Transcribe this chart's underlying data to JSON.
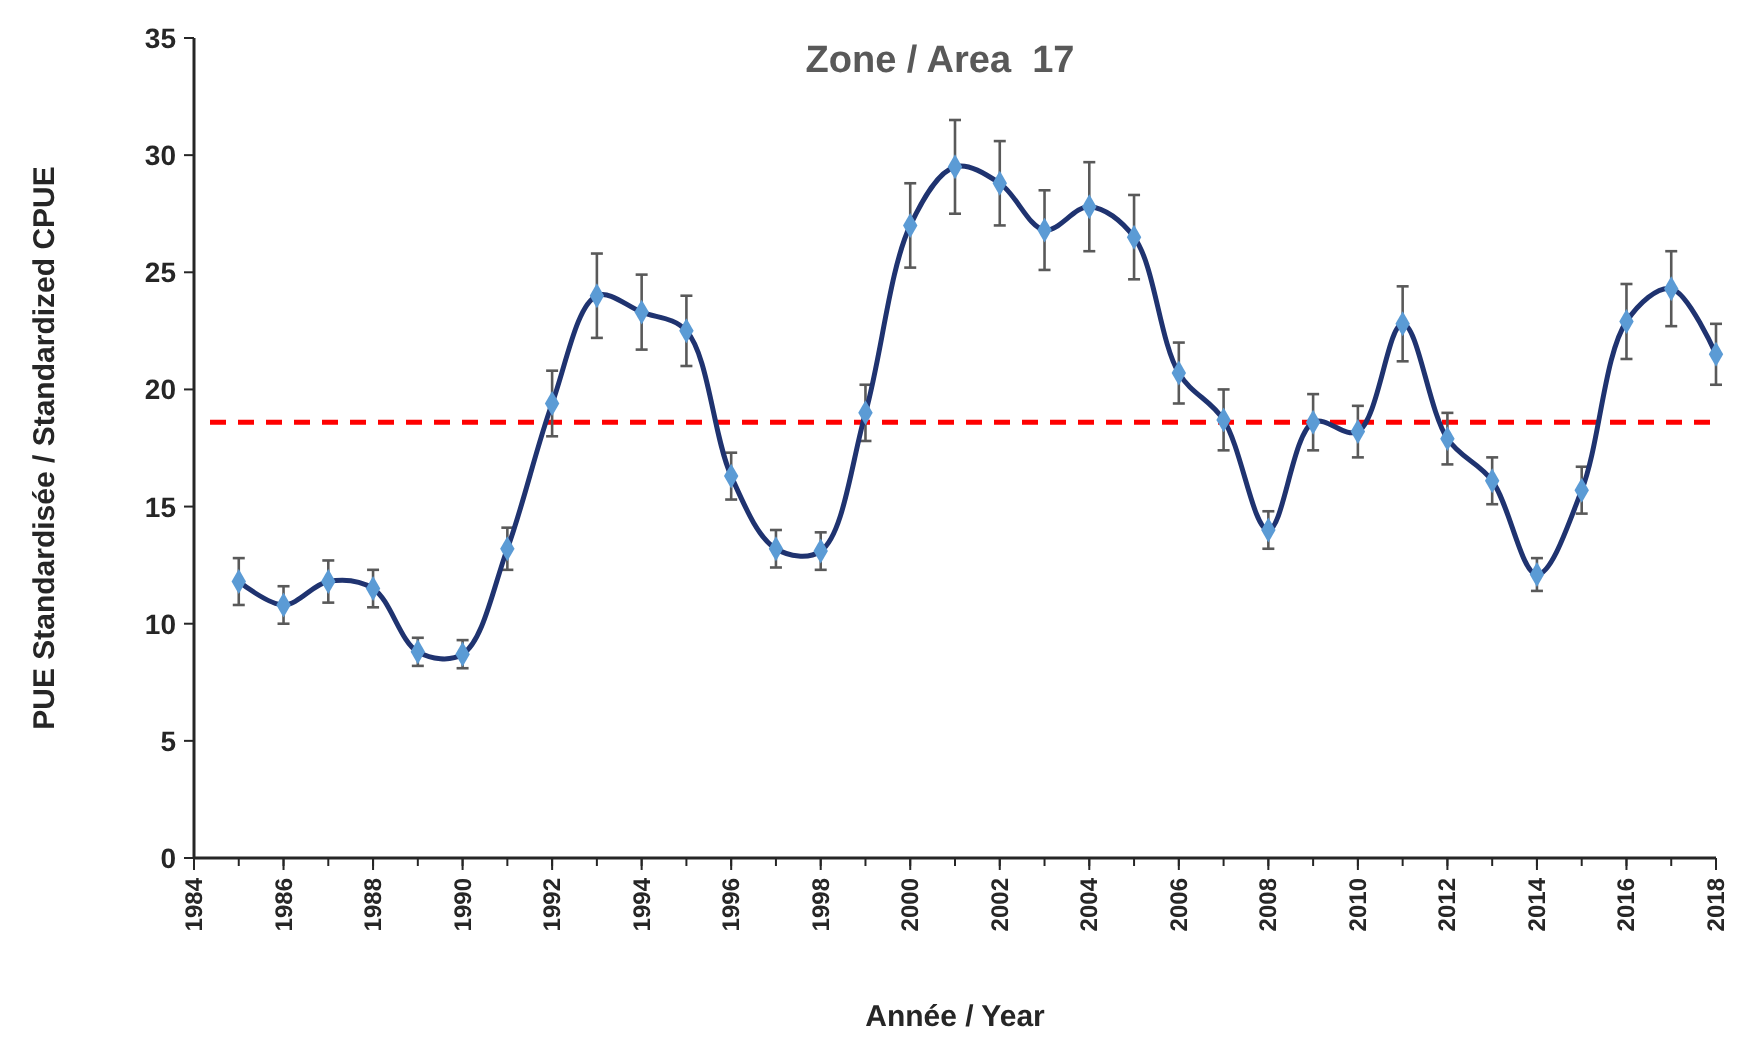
{
  "chart_data": {
    "type": "line",
    "title": "Zone / Area  17",
    "xlabel": "Année / Year",
    "ylabel": "PUE Standardisée / Standardized CPUE",
    "x": [
      1985,
      1986,
      1987,
      1988,
      1989,
      1990,
      1991,
      1992,
      1993,
      1994,
      1995,
      1996,
      1997,
      1998,
      1999,
      2000,
      2001,
      2002,
      2003,
      2004,
      2005,
      2006,
      2007,
      2008,
      2009,
      2010,
      2011,
      2012,
      2013,
      2014,
      2015,
      2016,
      2017,
      2018
    ],
    "series": [
      {
        "color": "#1f3370",
        "values": [
          11.8,
          10.8,
          11.8,
          11.5,
          8.8,
          8.7,
          13.2,
          19.4,
          24.0,
          23.3,
          22.5,
          16.3,
          13.2,
          13.1,
          19.0,
          27.0,
          29.5,
          28.8,
          26.8,
          27.8,
          26.5,
          20.7,
          18.7,
          14.0,
          18.6,
          18.2,
          22.8,
          17.9,
          16.1,
          12.1,
          15.7,
          22.9,
          24.3,
          21.5
        ],
        "errors": [
          1.0,
          0.8,
          0.9,
          0.8,
          0.6,
          0.6,
          0.9,
          1.4,
          1.8,
          1.6,
          1.5,
          1.0,
          0.8,
          0.8,
          1.2,
          1.8,
          2.0,
          1.8,
          1.7,
          1.9,
          1.8,
          1.3,
          1.3,
          0.8,
          1.2,
          1.1,
          1.6,
          1.1,
          1.0,
          0.7,
          1.0,
          1.6,
          1.6,
          1.3
        ]
      }
    ],
    "marker": "diamond",
    "line_style": "solid",
    "xlim": [
      1984,
      2018
    ],
    "xticks": [
      1984,
      1986,
      1988,
      1990,
      1992,
      1994,
      1996,
      1998,
      2000,
      2002,
      2004,
      2006,
      2008,
      2010,
      2012,
      2014,
      2016,
      2018
    ],
    "ylim": [
      0,
      35
    ],
    "yticks": [
      0,
      5,
      10,
      15,
      20,
      25,
      30,
      35
    ],
    "ref_lines": [
      {
        "axis": "y",
        "value": 18.6,
        "color": "#ff0000",
        "line_style": "dashed"
      }
    ],
    "grid": false
  }
}
